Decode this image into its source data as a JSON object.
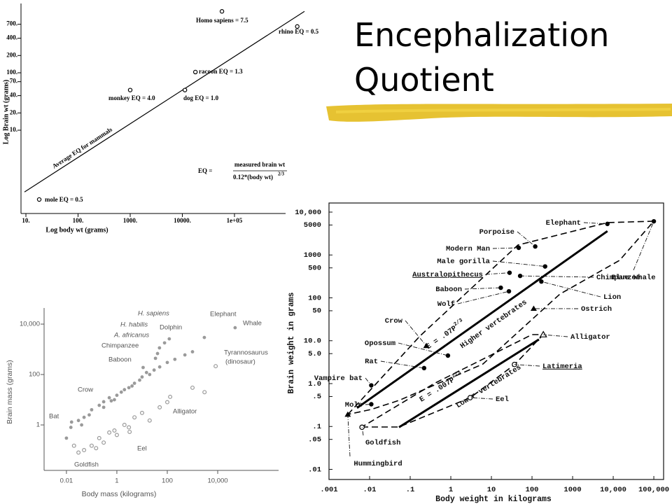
{
  "slide": {
    "title": "Encephalization Quotient"
  },
  "chart_data": [
    {
      "type": "scatter",
      "log_x": true,
      "log_y": true,
      "xlabel": "Log body wt (grams)",
      "ylabel": "Log Brain wt (grams)",
      "xlim": [
        8.05,
        3000000
      ],
      "ylim": [
        0.354,
        1610
      ],
      "xticks": [
        {
          "value": 10,
          "label": "10."
        },
        {
          "value": 100,
          "label": "100."
        },
        {
          "value": 1000,
          "label": "1000."
        },
        {
          "value": 10000,
          "label": "10000."
        },
        {
          "value": 100000,
          "label": "1e+05"
        }
      ],
      "yticks": [
        {
          "value": 10,
          "label": "10."
        },
        {
          "value": 20,
          "label": "20."
        },
        {
          "value": 40,
          "label": "40."
        },
        {
          "value": 70,
          "label": "70."
        },
        {
          "value": 100,
          "label": "100."
        },
        {
          "value": 200,
          "label": "200."
        },
        {
          "value": 400,
          "label": "400."
        },
        {
          "value": 700,
          "label": "700."
        }
      ],
      "series": [
        {
          "marker": "open-circle",
          "color": "#000000",
          "x": [
            57500,
            1600000,
            17800,
            11200,
            1000,
            18
          ],
          "values": [
            1175,
            640,
            103,
            50,
            50,
            0.62
          ],
          "labels": [
            "Homo sapiens = 7.5",
            "rhino EQ = 0.5",
            "racoon EQ = 1.3",
            "dog EQ = 1.0",
            "monkey EQ = 4.0",
            "mole EQ = 0.5"
          ]
        }
      ],
      "lines": [
        {
          "label": "Average EQ for mammals",
          "x": [
            9.4,
            2200000
          ],
          "values": [
            0.84,
            1175
          ],
          "color": "#000000"
        }
      ],
      "annotations": [
        "EQ =",
        "measured brain wt",
        "0.12*(body wt)",
        "2/3"
      ]
    },
    {
      "type": "scatter",
      "log_x": true,
      "log_y": true,
      "xlabel": "Body mass (kilograms)",
      "ylabel": "Brain mass (grams)",
      "xlim": [
        0.0013,
        2600000
      ],
      "ylim": [
        0.0157,
        43600
      ],
      "xticks": [
        0.01,
        1,
        100,
        {
          "value": 10000,
          "label": "10,000"
        }
      ],
      "yticks": [
        1,
        100,
        {
          "value": 10000,
          "label": "10,000"
        }
      ],
      "series": [
        {
          "marker": "circle",
          "color": "#9a9a9a",
          "x": [
            2950,
            49000,
            78,
            49,
            41,
            120,
            34,
            11,
            0.3,
            0.016,
            0.01,
            0.015,
            0.03,
            0.05,
            0.08,
            0.1,
            0.2,
            0.3,
            0.5,
            0.8,
            1,
            1.5,
            2,
            3,
            5,
            8,
            10,
            20,
            30,
            50,
            100,
            200,
            500,
            1000,
            0.04,
            0.6,
            4,
            15
          ],
          "values": [
            2950,
            7200,
            1800,
            1140,
            680,
            2600,
            440,
            190,
            8.3,
            1.3,
            0.3,
            0.8,
            1.5,
            2,
            2.5,
            4,
            6,
            5,
            12,
            10,
            15,
            20,
            25,
            30,
            45,
            60,
            80,
            100,
            150,
            200,
            300,
            400,
            600,
            800,
            1,
            9,
            35,
            120
          ],
          "labels": [
            "Elephant",
            "Whale",
            "H. sapiens",
            "H. habilis",
            "A. africanus",
            "Dolphin",
            "Chimpanzee",
            "Baboon",
            "Crow",
            "Bat",
            null,
            null,
            null,
            null,
            null,
            null,
            null,
            null,
            null,
            null,
            null,
            null,
            null,
            null,
            null,
            null,
            null,
            null,
            null,
            null,
            null,
            null,
            null,
            null,
            null,
            null,
            null,
            null
          ]
        },
        {
          "marker": "open-circle",
          "color": "#9a9a9a",
          "x": [
            8300,
            130,
            3.2,
            0.02,
            0.05,
            0.1,
            0.2,
            0.3,
            0.5,
            1,
            2,
            3,
            5,
            10,
            20,
            50,
            100,
            1000,
            3000,
            0.03,
            0.15,
            0.8
          ],
          "values": [
            215,
            13,
            0.53,
            0.15,
            0.1,
            0.15,
            0.3,
            0.2,
            0.5,
            0.4,
            1,
            0.8,
            2,
            3,
            1.5,
            5,
            8,
            30,
            20,
            0.08,
            0.12,
            0.6
          ],
          "labels": [
            "Tyrannosaurus",
            "Alligator",
            "Eel",
            "Goldfish",
            null,
            null,
            null,
            null,
            null,
            null,
            null,
            null,
            null,
            null,
            null,
            null,
            null,
            null,
            null,
            null,
            null,
            null
          ]
        }
      ],
      "annotations": [
        "(dinosaur)"
      ]
    },
    {
      "type": "scatter",
      "log_x": true,
      "log_y": true,
      "xlabel": "Body weight in kilograms",
      "ylabel": "Brain weight in grams",
      "xlim": [
        0.001,
        174000
      ],
      "ylim": [
        0.0058,
        16300
      ],
      "xticks": [
        {
          "value": 0.001,
          "label": ".001"
        },
        {
          "value": 0.01,
          "label": ".01"
        },
        {
          "value": 0.1,
          "label": ".1"
        },
        1,
        10,
        100,
        1000,
        {
          "value": 10000,
          "label": "10,000"
        },
        {
          "value": 100000,
          "label": "100,000"
        }
      ],
      "yticks": [
        {
          "value": 0.01,
          "label": ".01"
        },
        {
          "value": 0.05,
          "label": ".05"
        },
        {
          "value": 0.1,
          "label": ".1"
        },
        {
          "value": 0.5,
          "label": ".5"
        },
        {
          "value": 1,
          "label": "1.0"
        },
        {
          "value": 5,
          "label": "5.0"
        },
        {
          "value": 10,
          "label": "10.0"
        },
        50,
        100,
        500,
        1000,
        5000,
        {
          "value": 10000,
          "label": "10,000"
        }
      ],
      "series": [
        {
          "marker": "circle",
          "color": "#000000",
          "x": [
            7200,
            100000,
            120,
            47,
            210,
            28,
            51,
            170,
            17,
            27,
            0.85,
            0.22,
            0.011,
            0.011
          ],
          "values": [
            5300,
            6100,
            1580,
            1470,
            540,
            385,
            325,
            240,
            172,
            142,
            4.5,
            2.3,
            0.91,
            0.33
          ],
          "labels": [
            "Elephant",
            "Blue Whale",
            "Porpoise",
            "Modern Man",
            "Male gorilla",
            "Australopithecus",
            "Chimpanzee",
            "Lion",
            "Baboon",
            "Wolf",
            "Opossum",
            "Rat",
            "Vampire bat",
            "Mole"
          ]
        },
        {
          "marker": "triangle",
          "color": "#000000",
          "x": [
            110,
            0.25,
            0.0029
          ],
          "values": [
            56,
            7.6,
            0.19
          ],
          "labels": [
            "Ostrich",
            "Crow",
            "Hummingbird"
          ]
        },
        {
          "marker": "open-circle",
          "color": "#000000",
          "x": [
            0.0065,
            37,
            3
          ],
          "values": [
            0.096,
            2.8,
            0.47
          ],
          "labels": [
            "Goldfish",
            "Latimeria",
            "Eel"
          ]
        },
        {
          "marker": "open-triangle",
          "color": "#000000",
          "x": [
            190
          ],
          "values": [
            13.8
          ],
          "labels": [
            "Alligator"
          ]
        }
      ],
      "lines": [
        {
          "label": "E = .07P",
          "exponent": "2/3",
          "x": [
            0.0049,
            7200
          ],
          "values": [
            0.27,
            3600
          ],
          "color": "#000000"
        },
        {
          "label": "E = .007P",
          "exponent": "2/3",
          "x": [
            0.053,
            148
          ],
          "values": [
            0.096,
            10.7
          ],
          "color": "#000000"
        }
      ],
      "annotations": [
        "Higher vertebrates",
        "Lower vertebrates"
      ]
    }
  ]
}
